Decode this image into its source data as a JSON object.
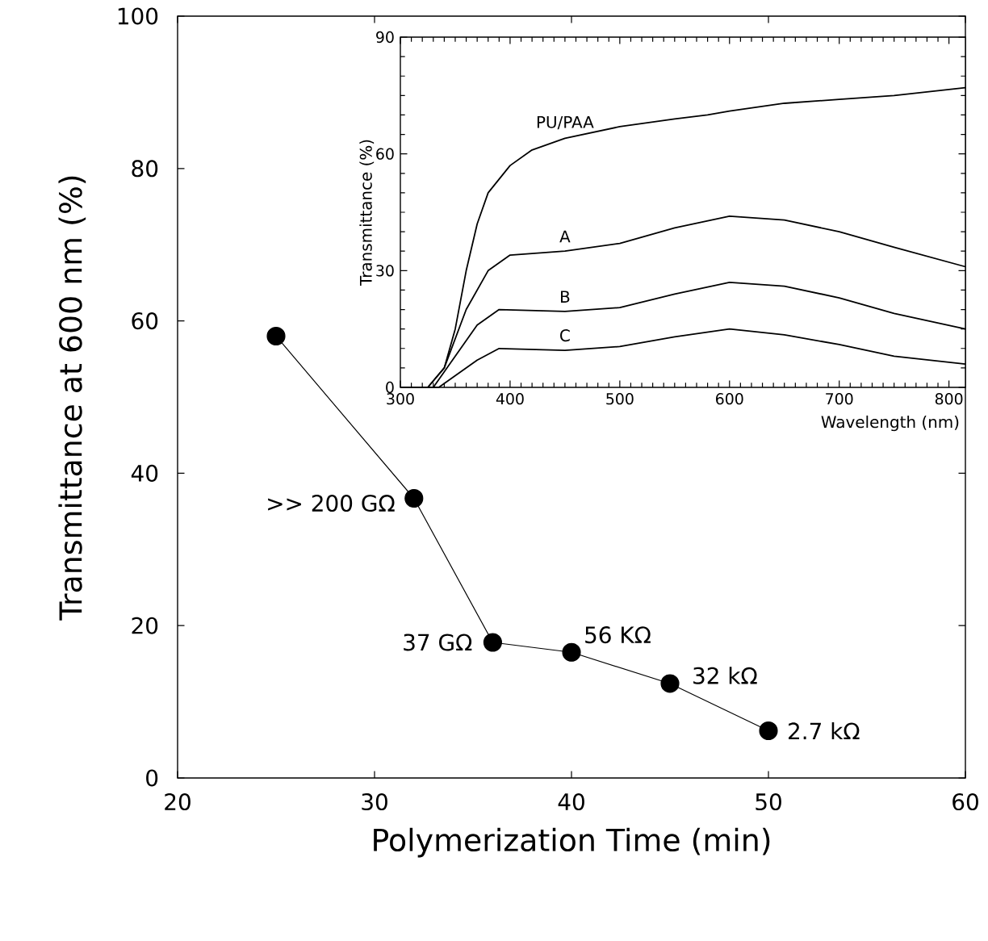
{
  "chart_data": [
    {
      "type": "line",
      "xlabel": "Polymerization Time (min)",
      "ylabel": "Transmittance at 600 nm (%)",
      "color": "#000000",
      "marker": "circle",
      "line_style": "solid",
      "x": [
        25,
        32,
        36,
        40,
        45,
        50
      ],
      "values": [
        58,
        36.7,
        17.8,
        16.5,
        12.4,
        6.2
      ],
      "xlim": [
        20,
        60
      ],
      "ylim": [
        0,
        100
      ],
      "xticks": [
        20,
        30,
        40,
        50,
        60
      ],
      "yticks": [
        0,
        20,
        40,
        60,
        80,
        100
      ],
      "annotations": [
        {
          "text": ">> 200 GΩ",
          "x": 32,
          "y": 36.7
        },
        {
          "text": "37 GΩ",
          "x": 36,
          "y": 17.8
        },
        {
          "text": "56 KΩ",
          "x": 40,
          "y": 16.5
        },
        {
          "text": "32 kΩ",
          "x": 45,
          "y": 12.4
        },
        {
          "text": "2.7 kΩ",
          "x": 50,
          "y": 6.2
        }
      ]
    },
    {
      "type": "line",
      "xlabel": "Wavelength (nm)",
      "ylabel": "Transmittance (%)",
      "marker": "none",
      "line_style": "solid",
      "xlim": [
        300,
        815
      ],
      "ylim": [
        0,
        90
      ],
      "xticks": [
        300,
        400,
        500,
        600,
        700,
        800
      ],
      "yticks": [
        0,
        30,
        60,
        90
      ],
      "series": [
        {
          "name": "PU/PAA",
          "color": "#000000",
          "x": [
            300,
            325,
            340,
            350,
            360,
            370,
            380,
            400,
            420,
            450,
            500,
            550,
            580,
            600,
            650,
            700,
            750,
            815
          ],
          "values": [
            0,
            0,
            5,
            15,
            30,
            42,
            50,
            57,
            61,
            64,
            67,
            69,
            70,
            71,
            73,
            74,
            75,
            77
          ]
        },
        {
          "name": "A",
          "color": "#000000",
          "x": [
            300,
            325,
            340,
            360,
            380,
            400,
            450,
            500,
            550,
            600,
            650,
            700,
            750,
            815
          ],
          "values": [
            0,
            0,
            5,
            20,
            30,
            34,
            35,
            37,
            41,
            44,
            43,
            40,
            36,
            31
          ]
        },
        {
          "name": "B",
          "color": "#000000",
          "x": [
            300,
            330,
            350,
            370,
            390,
            450,
            500,
            550,
            600,
            650,
            700,
            750,
            815
          ],
          "values": [
            0,
            0,
            8,
            16,
            20,
            19.5,
            20.5,
            24,
            27,
            26,
            23,
            19,
            15
          ]
        },
        {
          "name": "C",
          "color": "#000000",
          "x": [
            300,
            335,
            350,
            370,
            390,
            450,
            500,
            550,
            600,
            650,
            700,
            750,
            815
          ],
          "values": [
            0,
            0,
            3,
            7,
            10,
            9.5,
            10.5,
            13,
            15,
            13.5,
            11,
            8,
            6
          ]
        }
      ]
    }
  ]
}
